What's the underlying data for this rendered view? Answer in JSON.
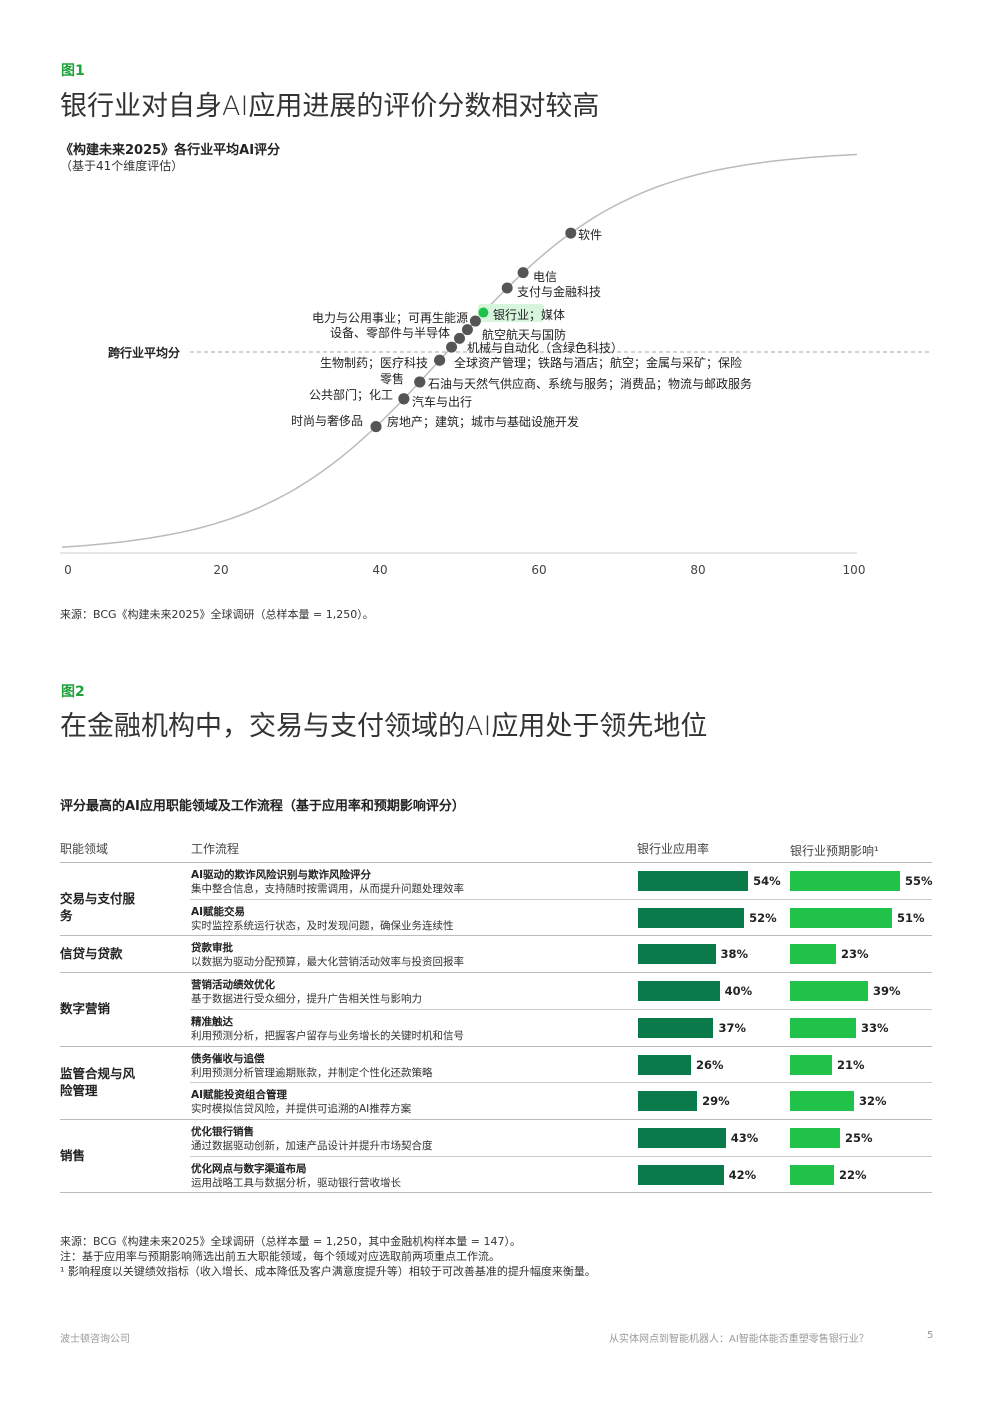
{
  "fig1": {
    "label": "图1",
    "title": "银行业对自身AI应用进展的评价分数相对较高",
    "chart_title": "《构建未来2025》各行业平均AI评分",
    "chart_subtitle": "（基于41个维度评估）",
    "avg_label": "跨行业平均分",
    "source": "来源：BCG《构建未来2025》全球调研（总样本量 = 1,250）。"
  },
  "chart_data": {
    "type": "scatter",
    "title": "《构建未来2025》各行业平均AI评分",
    "xlim": [
      0,
      100
    ],
    "xticks": [
      "0",
      "20",
      "40",
      "60",
      "80",
      "100"
    ],
    "average_line_label": "跨行业平均分",
    "highlight_color": "#1ec24a",
    "points": [
      {
        "label": "软件",
        "x": 64
      },
      {
        "label": "电信",
        "x": 58
      },
      {
        "label": "支付与金融科技",
        "x": 56
      },
      {
        "label": "银行业；媒体",
        "x": 53,
        "highlight": true
      },
      {
        "label": "电力与公用事业；可再生能源",
        "x": 52
      },
      {
        "label": "设备、零部件与半导体",
        "x": 51
      },
      {
        "label": "航空航天与国防",
        "x": 50
      },
      {
        "label": "机械与自动化（含绿色科技）",
        "x": 49
      },
      {
        "label": "生物制药；医疗科技",
        "x": 47.5
      },
      {
        "label": "全球资产管理；铁路与酒店；航空；金属与采矿；保险",
        "x": 47.5
      },
      {
        "label": "零售",
        "x": 45
      },
      {
        "label": "石油与天然气供应商、系统与服务；消费品；物流与邮政服务",
        "x": 45
      },
      {
        "label": "公共部门；化工",
        "x": 43
      },
      {
        "label": "汽车与出行",
        "x": 43
      },
      {
        "label": "时尚与奢侈品",
        "x": 39.5
      },
      {
        "label": "房地产；建筑；城市与基础设施开发",
        "x": 39.5
      }
    ]
  },
  "fig2": {
    "label": "图2",
    "title": "在金融机构中，交易与支付领域的AI应用处于领先地位",
    "subtitle": "评分最高的AI应用职能领域及工作流程（基于应用率和预期影响评分）",
    "headers": [
      "职能领域",
      "工作流程",
      "银行业应用率",
      "银行业预期影响¹"
    ],
    "adoption_color": "#0a7a4a",
    "impact_color": "#21c24a",
    "groups": [
      {
        "name": "交易与支付服务",
        "rows": [
          {
            "title": "AI驱动的欺诈风险识别与欺诈风险评分",
            "desc": "集中整合信息，支持随时按需调用，从而提升问题处理效率",
            "adoption": 54,
            "impact": 55,
            "adoption_label": "54%",
            "impact_label": "55%"
          },
          {
            "title": "AI赋能交易",
            "desc": "实时监控系统运行状态，及时发现问题，确保业务连续性",
            "adoption": 52,
            "impact": 51,
            "adoption_label": "52%",
            "impact_label": "51%"
          }
        ]
      },
      {
        "name": "信贷与贷款",
        "rows": [
          {
            "title": "贷款审批",
            "desc": "以数据为驱动分配预算，最大化营销活动效率与投资回报率",
            "adoption": 38,
            "impact": 23,
            "adoption_label": "38%",
            "impact_label": "23%"
          }
        ]
      },
      {
        "name": "数字营销",
        "rows": [
          {
            "title": "营销活动绩效优化",
            "desc": "基于数据进行受众细分，提升广告相关性与影响力",
            "adoption": 40,
            "impact": 39,
            "adoption_label": "40%",
            "impact_label": "39%"
          },
          {
            "title": "精准触达",
            "desc": "利用预测分析，把握客户留存与业务增长的关键时机和信号",
            "adoption": 37,
            "impact": 33,
            "adoption_label": "37%",
            "impact_label": "33%"
          }
        ]
      },
      {
        "name": "监管合规与风险管理",
        "rows": [
          {
            "title": "债务催收与追偿",
            "desc": "利用预测分析管理逾期账款，并制定个性化还款策略",
            "adoption": 26,
            "impact": 21,
            "adoption_label": "26%",
            "impact_label": "21%"
          },
          {
            "title": "AI赋能投资组合管理",
            "desc": "实时模拟信贷风险，并提供可追溯的AI推荐方案",
            "adoption": 29,
            "impact": 32,
            "adoption_label": "29%",
            "impact_label": "32%"
          }
        ]
      },
      {
        "name": "销售",
        "rows": [
          {
            "title": "优化银行销售",
            "desc": "通过数据驱动创新，加速产品设计并提升市场契合度",
            "adoption": 43,
            "impact": 25,
            "adoption_label": "43%",
            "impact_label": "25%"
          },
          {
            "title": "优化网点与数字渠道布局",
            "desc": "运用战略工具与数据分析，驱动银行营收增长",
            "adoption": 42,
            "impact": 22,
            "adoption_label": "42%",
            "impact_label": "22%"
          }
        ]
      }
    ],
    "source": "来源：BCG《构建未来2025》全球调研（总样本量 = 1,250，其中金融机构样本量 = 147）。",
    "note": "注：基于应用率与预期影响筛选出前五大职能领域，每个领域对应选取前两项重点工作流。",
    "footnote": "¹ 影响程度以关键绩效指标（收入增长、成本降低及客户满意度提升等）相较于可改善基准的提升幅度来衡量。"
  },
  "footer": {
    "left": "波士顿咨询公司",
    "right": "从实体网点到智能机器人：AI智能体能否重塑零售银行业？",
    "page": "5"
  }
}
